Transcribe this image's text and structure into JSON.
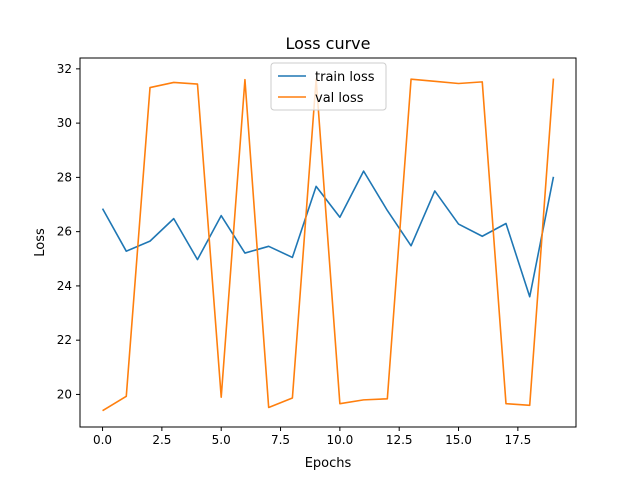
{
  "chart_data": {
    "type": "line",
    "title": "Loss curve",
    "xlabel": "Epochs",
    "ylabel": "Loss",
    "xlim": [
      -0.95,
      19.95
    ],
    "ylim": [
      18.8,
      32.4
    ],
    "xticks": [
      0.0,
      2.5,
      5.0,
      7.5,
      10.0,
      12.5,
      15.0,
      17.5
    ],
    "xtick_labels": [
      "0.0",
      "2.5",
      "5.0",
      "7.5",
      "10.0",
      "12.5",
      "15.0",
      "17.5"
    ],
    "yticks": [
      20,
      22,
      24,
      26,
      28,
      30,
      32
    ],
    "ytick_labels": [
      "20",
      "22",
      "24",
      "26",
      "28",
      "30",
      "32"
    ],
    "grid": false,
    "legend_position": "top-center",
    "x": [
      0,
      1,
      2,
      3,
      4,
      5,
      6,
      7,
      8,
      9,
      10,
      11,
      12,
      13,
      14,
      15,
      16,
      17,
      18,
      19
    ],
    "series": [
      {
        "name": "train loss",
        "color": "#1f77b4",
        "values": [
          26.85,
          25.28,
          25.65,
          26.48,
          24.97,
          26.59,
          25.21,
          25.46,
          25.05,
          27.67,
          26.53,
          28.23,
          26.78,
          25.48,
          27.5,
          26.28,
          25.83,
          26.3,
          23.6,
          28.02
        ]
      },
      {
        "name": "val loss",
        "color": "#ff7f0e",
        "values": [
          19.4,
          19.93,
          31.31,
          31.5,
          31.44,
          19.9,
          31.6,
          19.52,
          19.87,
          31.62,
          19.66,
          19.8,
          19.84,
          31.62,
          31.54,
          31.46,
          31.52,
          19.66,
          19.6,
          31.64
        ]
      }
    ]
  }
}
